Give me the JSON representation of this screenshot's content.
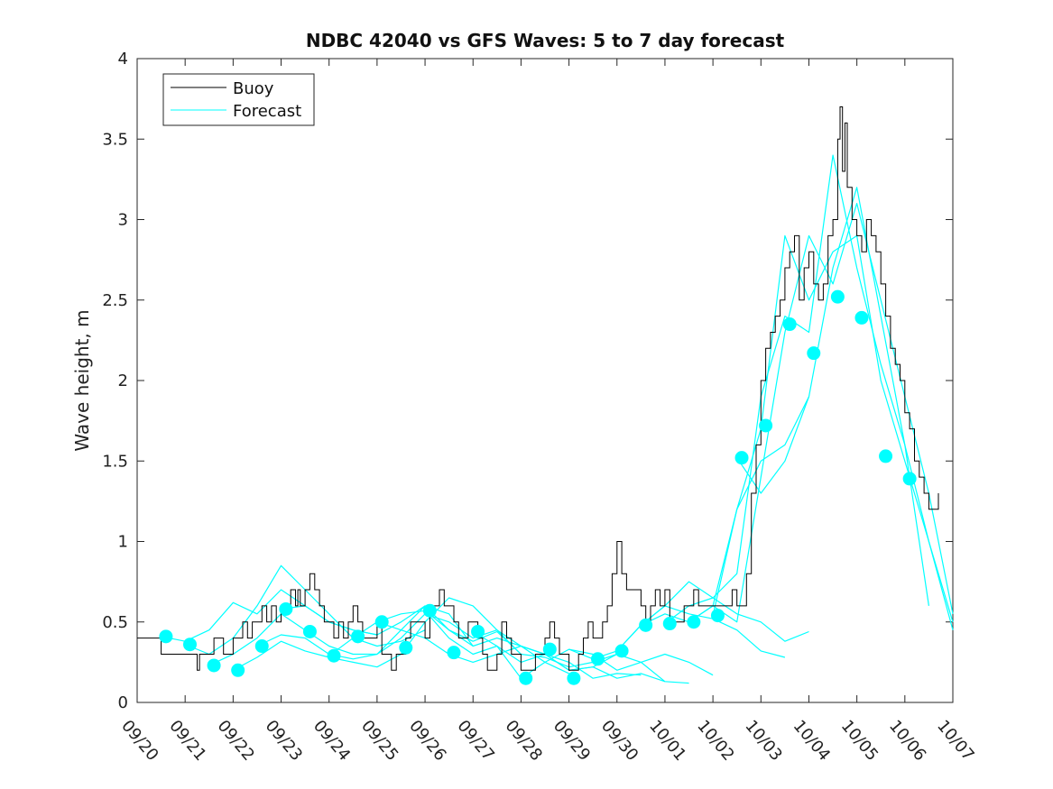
{
  "chart_data": {
    "type": "line",
    "title": "NDBC 42040 vs GFS Waves: 5 to 7 day forecast",
    "ylabel": "Wave height, m",
    "xlabel": "",
    "xlim": [
      0,
      17
    ],
    "ylim": [
      0,
      4
    ],
    "x_ticks": [
      "09/20",
      "09/21",
      "09/22",
      "09/23",
      "09/24",
      "09/25",
      "09/26",
      "09/27",
      "09/28",
      "09/29",
      "09/30",
      "10/01",
      "10/02",
      "10/03",
      "10/04",
      "10/05",
      "10/06",
      "10/07"
    ],
    "y_ticks": [
      0,
      0.5,
      1,
      1.5,
      2,
      2.5,
      3,
      3.5,
      4
    ],
    "y_tick_labels": [
      "0",
      "0.5",
      "1",
      "1.5",
      "2",
      "2.5",
      "3",
      "3.5",
      "4"
    ],
    "legend": {
      "placement": "top-left",
      "entries": [
        "Buoy",
        "Forecast"
      ]
    },
    "colors": {
      "buoy": "#000000",
      "forecast": "#00ffff",
      "axis": "#262626"
    },
    "series": [
      {
        "name": "Buoy",
        "x": [
          0,
          0.5,
          0.5,
          1.2,
          1.25,
          1.3,
          1.35,
          1.5,
          1.6,
          1.8,
          1.9,
          2.0,
          2.1,
          2.2,
          2.3,
          2.4,
          2.5,
          2.6,
          2.7,
          2.8,
          2.9,
          3.0,
          3.1,
          3.2,
          3.3,
          3.35,
          3.4,
          3.5,
          3.6,
          3.7,
          3.8,
          3.9,
          4.0,
          4.1,
          4.2,
          4.3,
          4.4,
          4.5,
          4.6,
          4.7,
          4.8,
          4.9,
          5.0,
          5.1,
          5.2,
          5.3,
          5.4,
          5.5,
          5.6,
          5.7,
          5.8,
          5.9,
          6.0,
          6.1,
          6.2,
          6.3,
          6.4,
          6.5,
          6.6,
          6.7,
          6.8,
          6.9,
          7.0,
          7.1,
          7.2,
          7.3,
          7.4,
          7.5,
          7.6,
          7.7,
          7.8,
          7.9,
          8.0,
          8.1,
          8.2,
          8.3,
          8.4,
          8.5,
          8.6,
          8.7,
          8.8,
          8.9,
          9.0,
          9.1,
          9.2,
          9.3,
          9.4,
          9.5,
          9.55,
          9.6,
          9.7,
          9.8,
          9.9,
          10.0,
          10.1,
          10.2,
          10.3,
          10.4,
          10.5,
          10.6,
          10.7,
          10.8,
          10.9,
          11.0,
          11.1,
          11.2,
          11.3,
          11.4,
          11.5,
          11.6,
          11.7,
          11.8,
          11.9,
          12.0,
          12.1,
          12.2,
          12.3,
          12.4,
          12.5,
          12.6,
          12.7,
          12.8,
          12.9,
          13.0,
          13.1,
          13.2,
          13.3,
          13.4,
          13.5,
          13.6,
          13.7,
          13.8,
          13.9,
          14.0,
          14.1,
          14.2,
          14.3,
          14.4,
          14.5,
          14.6,
          14.65,
          14.7,
          14.75,
          14.8,
          14.9,
          15.0,
          15.1,
          15.2,
          15.3,
          15.4,
          15.5,
          15.6,
          15.7,
          15.8,
          15.9,
          16.0,
          16.1,
          16.2,
          16.3,
          16.4,
          16.5,
          16.6,
          16.7
        ],
        "y": [
          0.4,
          0.4,
          0.3,
          0.3,
          0.2,
          0.3,
          0.3,
          0.3,
          0.4,
          0.3,
          0.3,
          0.4,
          0.4,
          0.5,
          0.4,
          0.5,
          0.5,
          0.6,
          0.5,
          0.6,
          0.5,
          0.6,
          0.6,
          0.7,
          0.6,
          0.7,
          0.6,
          0.7,
          0.8,
          0.7,
          0.6,
          0.5,
          0.5,
          0.4,
          0.5,
          0.4,
          0.5,
          0.6,
          0.5,
          0.4,
          0.4,
          0.4,
          0.5,
          0.3,
          0.3,
          0.2,
          0.3,
          0.3,
          0.4,
          0.5,
          0.5,
          0.5,
          0.4,
          0.6,
          0.6,
          0.7,
          0.6,
          0.6,
          0.5,
          0.4,
          0.4,
          0.5,
          0.5,
          0.4,
          0.3,
          0.2,
          0.2,
          0.3,
          0.5,
          0.4,
          0.3,
          0.3,
          0.2,
          0.2,
          0.2,
          0.3,
          0.3,
          0.4,
          0.5,
          0.4,
          0.3,
          0.3,
          0.2,
          0.2,
          0.3,
          0.4,
          0.5,
          0.4,
          0.4,
          0.4,
          0.5,
          0.6,
          0.8,
          1.0,
          0.8,
          0.7,
          0.7,
          0.7,
          0.6,
          0.5,
          0.6,
          0.7,
          0.6,
          0.7,
          0.5,
          0.5,
          0.5,
          0.6,
          0.6,
          0.7,
          0.6,
          0.6,
          0.6,
          0.6,
          0.6,
          0.6,
          0.6,
          0.7,
          0.6,
          0.6,
          0.8,
          1.3,
          1.6,
          2.0,
          2.2,
          2.3,
          2.4,
          2.5,
          2.7,
          2.8,
          2.9,
          2.5,
          2.7,
          2.8,
          2.6,
          2.5,
          2.6,
          2.9,
          3.0,
          3.5,
          3.7,
          3.3,
          3.6,
          3.2,
          3.0,
          2.9,
          2.8,
          3.0,
          2.9,
          2.8,
          2.6,
          2.4,
          2.2,
          2.1,
          2.0,
          1.8,
          1.7,
          1.5,
          1.4,
          1.3,
          1.2,
          1.2,
          1.3
        ]
      },
      {
        "name": "Forecast",
        "runs": [
          {
            "x": [
              0.5,
              1.0,
              1.5,
              2.0,
              2.5,
              3.0,
              3.5,
              4.0,
              4.5,
              5.0
            ],
            "y": [
              0.41,
              0.38,
              0.45,
              0.62,
              0.55,
              0.7,
              0.6,
              0.5,
              0.45,
              0.42
            ]
          },
          {
            "x": [
              1.0,
              1.5,
              2.0,
              2.5,
              3.0,
              3.5,
              4.0,
              4.5,
              5.0,
              5.5,
              6.0
            ],
            "y": [
              0.36,
              0.3,
              0.4,
              0.6,
              0.85,
              0.7,
              0.55,
              0.4,
              0.35,
              0.38,
              0.45
            ]
          },
          {
            "x": [
              1.5,
              2.0,
              2.5,
              3.0,
              3.5,
              4.0,
              4.5,
              5.0,
              5.5,
              6.0,
              6.5,
              7.0
            ],
            "y": [
              0.23,
              0.3,
              0.4,
              0.55,
              0.45,
              0.35,
              0.3,
              0.3,
              0.45,
              0.6,
              0.55,
              0.35
            ]
          },
          {
            "x": [
              2.0,
              2.5,
              3.0,
              3.5,
              4.0,
              4.5,
              5.0,
              5.5,
              6.0,
              6.5,
              7.0,
              7.5,
              8.0
            ],
            "y": [
              0.2,
              0.28,
              0.38,
              0.32,
              0.28,
              0.25,
              0.22,
              0.3,
              0.5,
              0.65,
              0.6,
              0.45,
              0.3
            ]
          },
          {
            "x": [
              2.5,
              3.0,
              3.5,
              4.0,
              4.5,
              5.0,
              5.5,
              6.0,
              6.5,
              7.0,
              7.5,
              8.0,
              8.5,
              9.0
            ],
            "y": [
              0.35,
              0.42,
              0.4,
              0.3,
              0.27,
              0.3,
              0.4,
              0.55,
              0.5,
              0.4,
              0.45,
              0.35,
              0.25,
              0.18
            ]
          },
          {
            "x": [
              3.0,
              3.5,
              4.0,
              4.5,
              5.0,
              5.5,
              6.0,
              6.5,
              7.0,
              7.5,
              8.0,
              8.5,
              9.0,
              9.5,
              10.0
            ],
            "y": [
              0.58,
              0.6,
              0.5,
              0.45,
              0.42,
              0.5,
              0.6,
              0.45,
              0.35,
              0.4,
              0.35,
              0.3,
              0.2,
              0.22,
              0.3
            ]
          },
          {
            "x": [
              4.0,
              4.5,
              5.0,
              5.5,
              6.0,
              6.5,
              7.0,
              7.5,
              8.0,
              8.5,
              9.0,
              9.5,
              10.0,
              10.5
            ],
            "y": [
              0.29,
              0.4,
              0.5,
              0.45,
              0.4,
              0.3,
              0.25,
              0.3,
              0.35,
              0.3,
              0.25,
              0.15,
              0.18,
              0.17
            ]
          },
          {
            "x": [
              5.0,
              5.5,
              6.0,
              6.5,
              7.0,
              7.5,
              8.0,
              8.5,
              9.0,
              9.5,
              10.0,
              10.5,
              11.0
            ],
            "y": [
              0.5,
              0.55,
              0.57,
              0.4,
              0.3,
              0.35,
              0.25,
              0.3,
              0.2,
              0.22,
              0.15,
              0.18,
              0.13
            ]
          },
          {
            "x": [
              6.0,
              6.5,
              7.0,
              7.5,
              8.0,
              8.5,
              9.0,
              9.5,
              10.0,
              10.5,
              11.0,
              11.5
            ],
            "y": [
              0.57,
              0.45,
              0.38,
              0.44,
              0.3,
              0.28,
              0.22,
              0.25,
              0.3,
              0.25,
              0.13,
              0.12
            ]
          },
          {
            "x": [
              7.0,
              7.5,
              8.0,
              8.5,
              9.0,
              9.5,
              10.0,
              10.5,
              11.0,
              11.5,
              12.0
            ],
            "y": [
              0.44,
              0.35,
              0.15,
              0.25,
              0.33,
              0.3,
              0.2,
              0.25,
              0.3,
              0.25,
              0.17
            ]
          },
          {
            "x": [
              9.0,
              9.5,
              10.0,
              10.5,
              11.0,
              11.5,
              12.0,
              12.5,
              13.0,
              13.5
            ],
            "y": [
              0.33,
              0.27,
              0.32,
              0.48,
              0.6,
              0.55,
              0.52,
              0.45,
              0.32,
              0.28
            ]
          },
          {
            "x": [
              10.0,
              10.5,
              11.0,
              11.5,
              12.0,
              12.5,
              13.0,
              13.5,
              14.0
            ],
            "y": [
              0.32,
              0.48,
              0.6,
              0.75,
              0.65,
              0.55,
              0.5,
              0.38,
              0.44
            ]
          },
          {
            "x": [
              10.5,
              11.0,
              11.5,
              12.0,
              12.5,
              13.0,
              13.5,
              14.0,
              14.5,
              15.0,
              15.5,
              16.0,
              16.5,
              17.0
            ],
            "y": [
              0.48,
              0.55,
              0.5,
              0.6,
              0.5,
              1.4,
              2.3,
              2.9,
              2.6,
              3.1,
              2.5,
              1.9,
              1.3,
              0.55
            ]
          },
          {
            "x": [
              11.0,
              11.5,
              12.0,
              12.5,
              13.0,
              13.5,
              14.0,
              14.5,
              15.0,
              15.5,
              16.0,
              16.5,
              17.0
            ],
            "y": [
              0.49,
              0.6,
              0.65,
              0.8,
              1.9,
              2.4,
              2.3,
              3.4,
              2.7,
              2.1,
              1.6,
              1.0,
              0.45
            ]
          },
          {
            "x": [
              11.5,
              12.0,
              12.5,
              13.0,
              13.5,
              14.0,
              14.5,
              15.0,
              15.5,
              16.0,
              16.5,
              17.0
            ],
            "y": [
              0.5,
              0.6,
              1.2,
              1.7,
              2.9,
              2.5,
              2.8,
              2.9,
              2.0,
              1.5,
              1.0,
              0.5
            ]
          },
          {
            "x": [
              12.0,
              12.5,
              13.0,
              13.5,
              14.0,
              14.5,
              15.0,
              15.5,
              16.0,
              16.5
            ],
            "y": [
              0.54,
              1.2,
              1.5,
              1.6,
              1.9,
              2.7,
              3.2,
              2.4,
              1.6,
              0.6
            ]
          },
          {
            "x": [
              12.5,
              13.0,
              13.5,
              14.0
            ],
            "y": [
              1.52,
              1.3,
              1.5,
              1.9
            ]
          }
        ],
        "markers": {
          "x": [
            0.6,
            1.1,
            1.6,
            2.1,
            2.6,
            3.1,
            3.6,
            4.1,
            4.6,
            5.1,
            5.6,
            6.1,
            6.6,
            7.1,
            8.1,
            8.6,
            9.1,
            9.6,
            10.1,
            10.6,
            11.1,
            11.6,
            12.1,
            12.6,
            13.1,
            13.6,
            14.1,
            14.6,
            15.1,
            15.6,
            16.1
          ],
          "y": [
            0.41,
            0.36,
            0.23,
            0.2,
            0.35,
            0.58,
            0.44,
            0.29,
            0.41,
            0.5,
            0.34,
            0.57,
            0.31,
            0.44,
            0.15,
            0.33,
            0.15,
            0.27,
            0.32,
            0.48,
            0.49,
            0.5,
            0.54,
            1.52,
            1.72,
            2.35,
            2.17,
            2.52,
            2.39,
            1.53,
            1.39
          ]
        }
      }
    ]
  }
}
